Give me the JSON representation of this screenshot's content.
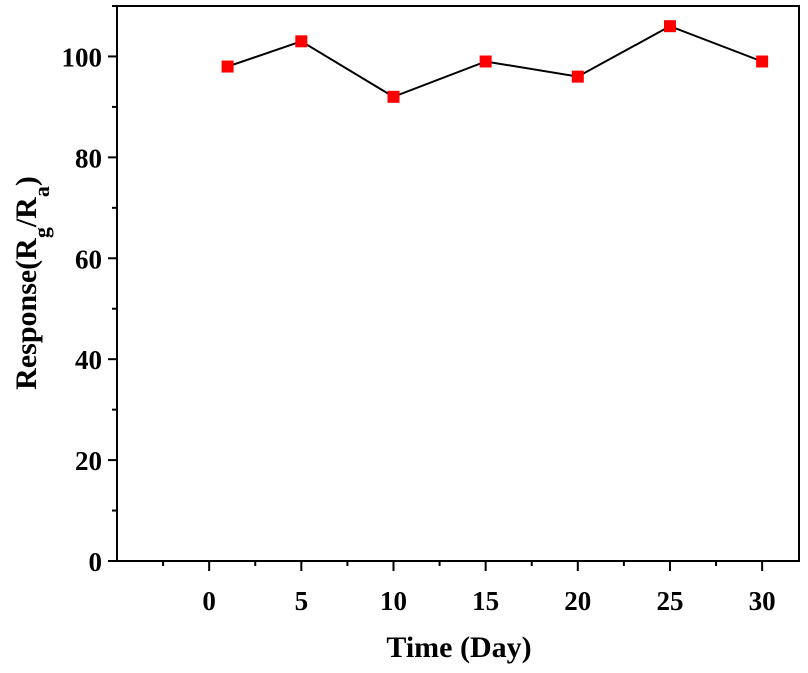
{
  "chart_data": {
    "type": "line",
    "title": "",
    "xlabel": "Time (Day)",
    "ylabel": {
      "prefix": "Response(R",
      "sub1": "g",
      "mid": "/R",
      "sub2": "a",
      "suffix": ")"
    },
    "xlim": [
      -5,
      32
    ],
    "ylim": [
      0,
      110
    ],
    "xticks": [
      0,
      5,
      10,
      15,
      20,
      25,
      30
    ],
    "yticks": [
      0,
      20,
      40,
      60,
      80,
      100
    ],
    "grid": false,
    "legend": "none",
    "series": [
      {
        "x": [
          1,
          5,
          10,
          15,
          20,
          25,
          30
        ],
        "y": [
          98,
          103,
          92,
          99,
          96,
          106,
          99
        ],
        "line_color": "#000000",
        "marker": "square",
        "marker_color": "#ff0000"
      }
    ]
  }
}
